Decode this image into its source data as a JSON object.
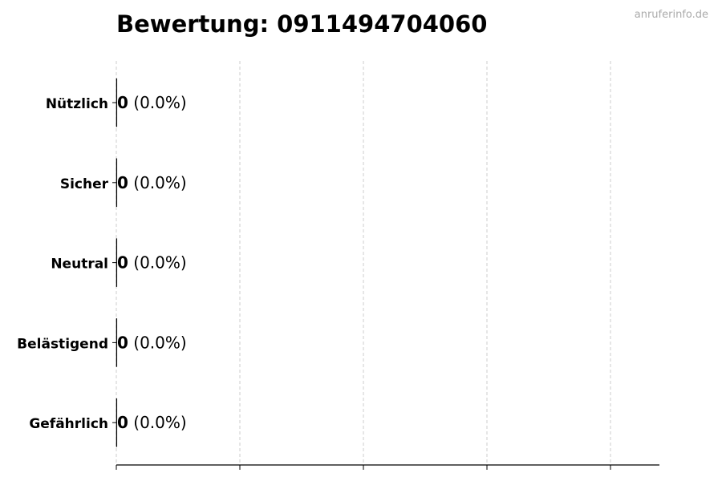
{
  "watermark": "anruferinfo.de",
  "chart_data": {
    "type": "bar",
    "orientation": "horizontal",
    "title": "Bewertung: 09114947040​60",
    "categories": [
      "Nützlich",
      "Sicher",
      "Neutral",
      "Belästigend",
      "Gefährlich"
    ],
    "values": [
      0,
      0,
      0,
      0,
      0
    ],
    "percent_labels": [
      "(0.0%)",
      "(0.0%)",
      "(0.0%)",
      "(0.0%)",
      "(0.0%)"
    ],
    "xlabel": "",
    "ylabel": "",
    "x_ticks_count": 5,
    "x_tick_labels_shown": false,
    "grid": "x-dashed",
    "colors": {
      "bar_edge": "#000000",
      "grid": "#cccccc",
      "watermark": "#aaaaaa"
    }
  }
}
